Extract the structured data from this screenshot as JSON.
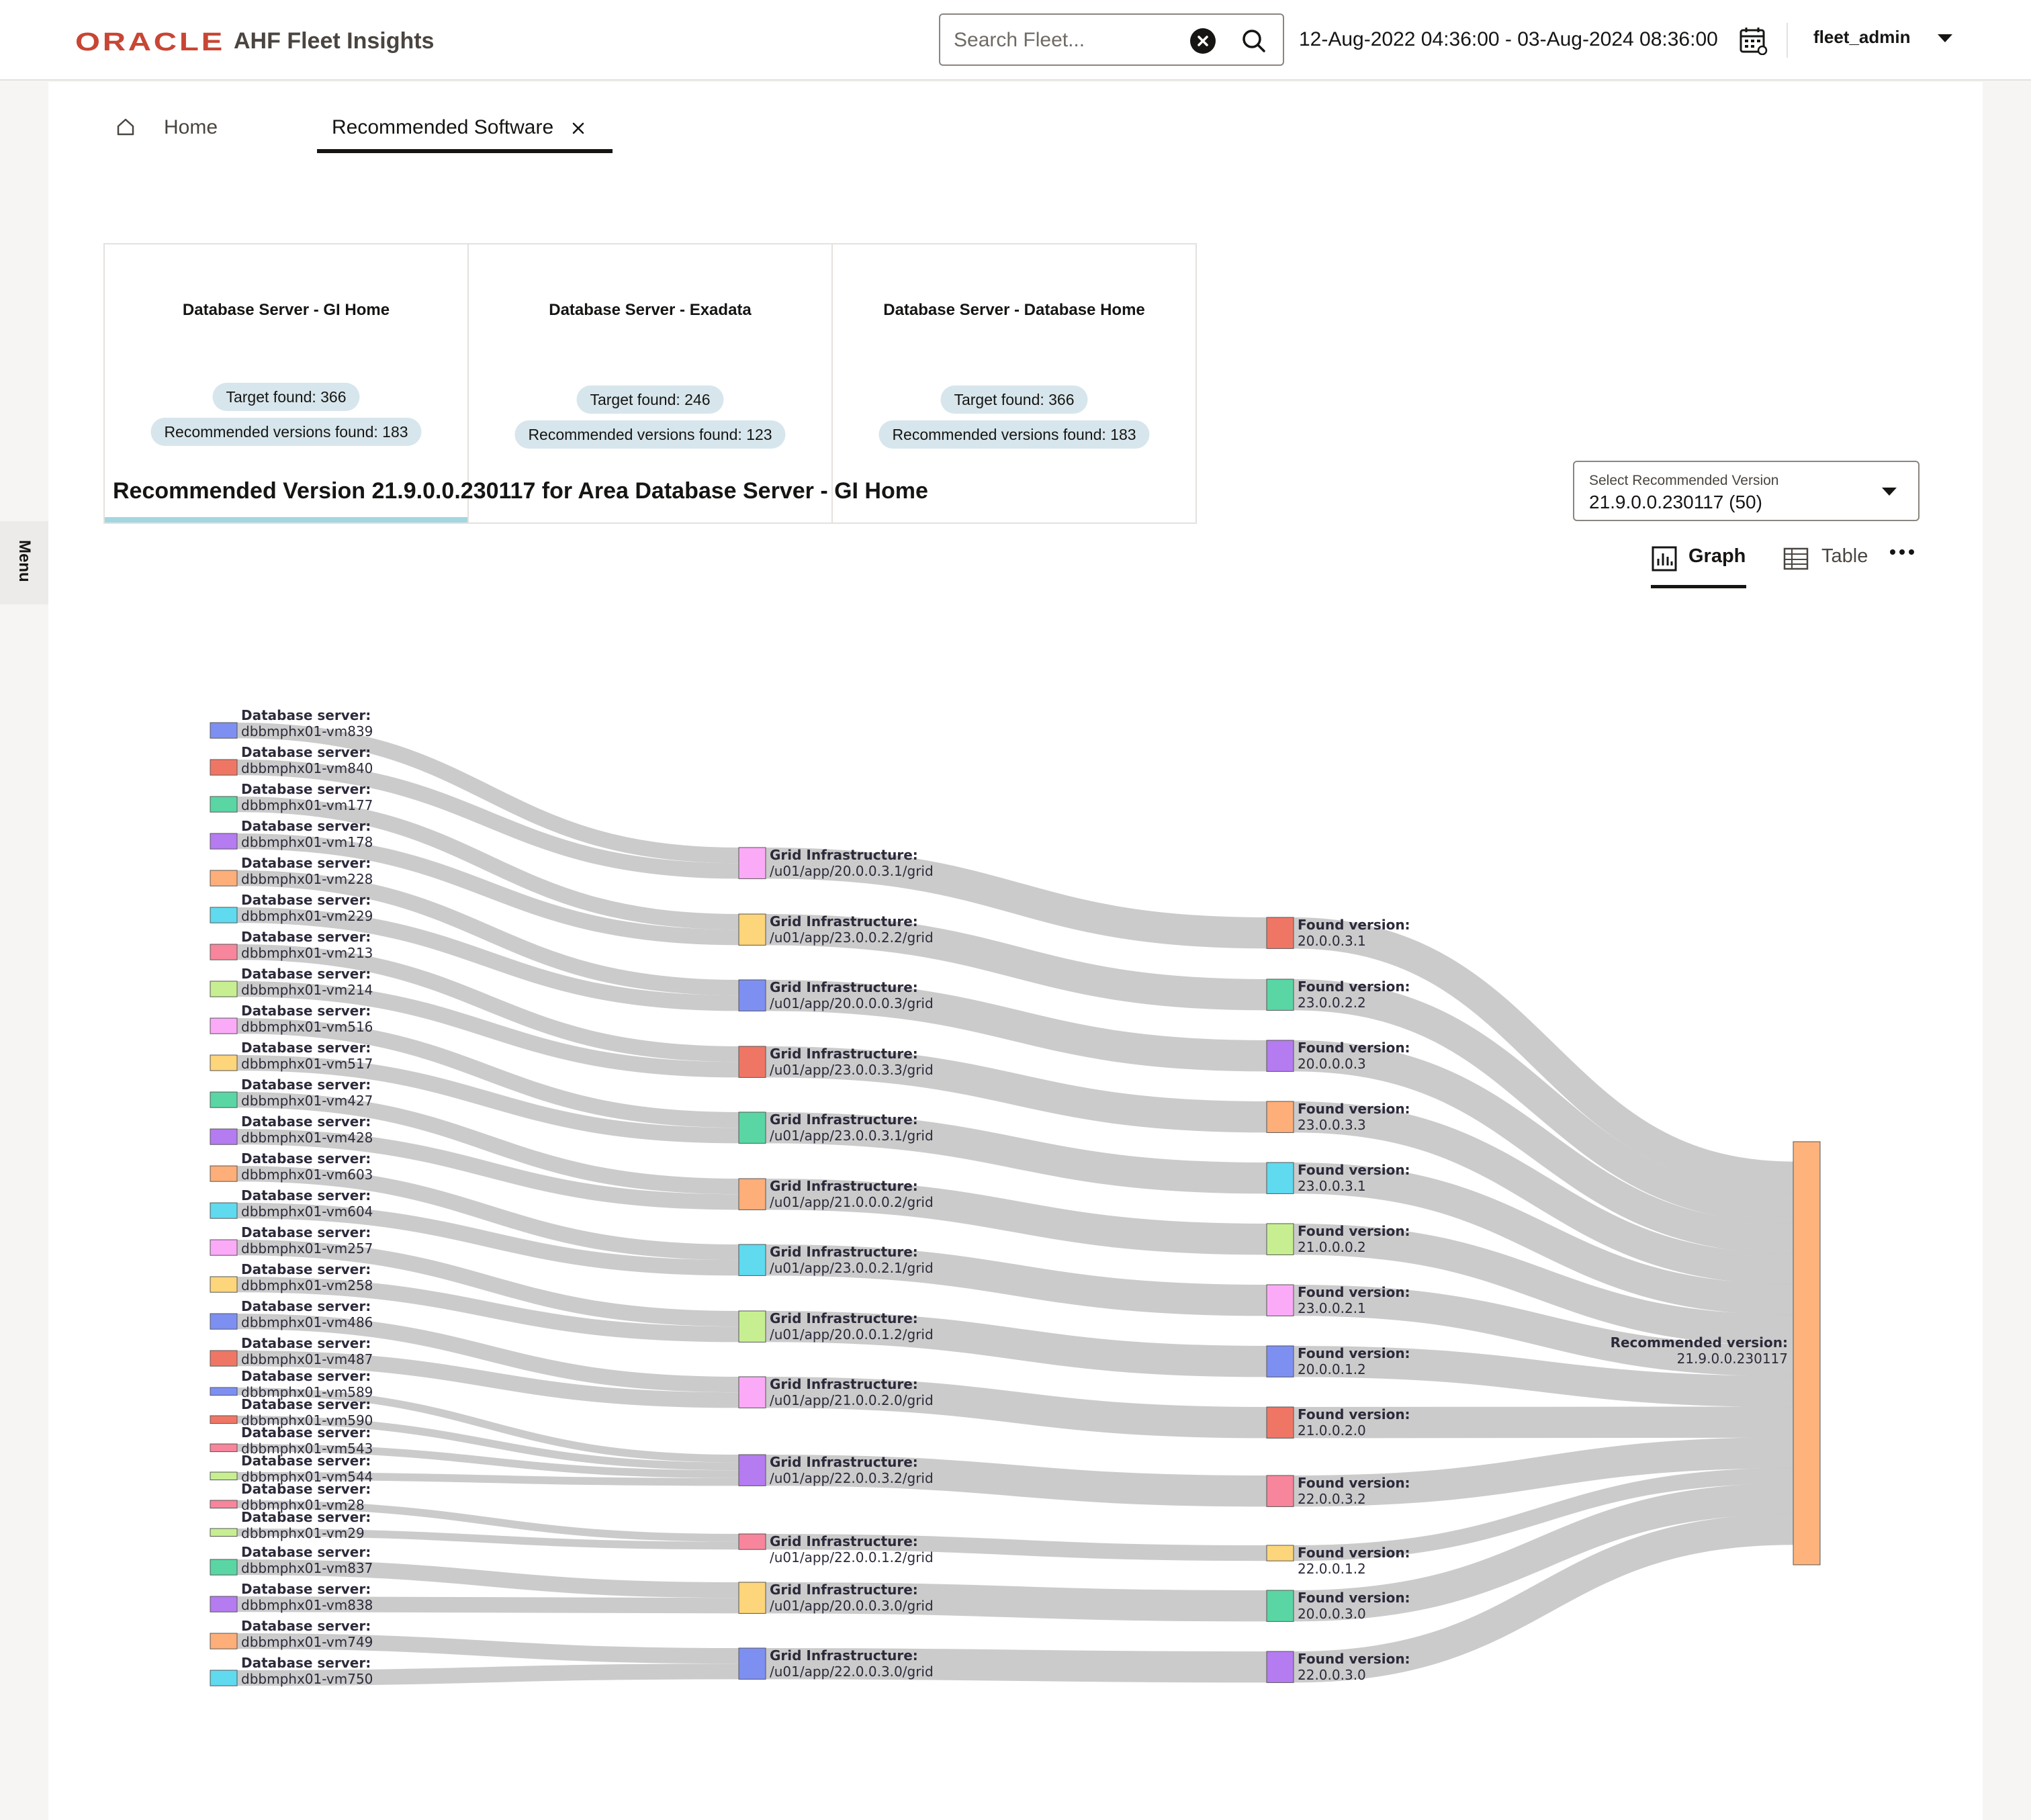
{
  "header": {
    "logo_text": "ORACLE",
    "app_title": "AHF Fleet Insights",
    "search_placeholder": "Search Fleet...",
    "date_range": "12-Aug-2022 04:36:00 - 03-Aug-2024 08:36:00",
    "user": "fleet_admin",
    "icons": {
      "clear": "clear-circle-icon",
      "search": "search-icon",
      "calendar": "calendar-icon",
      "user_menu": "chevron-down-icon"
    }
  },
  "side_menu": {
    "label": "Menu"
  },
  "tabs": [
    {
      "label": "Home",
      "icon": "home-icon"
    },
    {
      "label": "Recommended Software",
      "closable": true
    }
  ],
  "cards": [
    {
      "title": "Database Server - GI Home",
      "target": "Target found: 366",
      "versions": "Recommended versions found: 183",
      "selected": true
    },
    {
      "title": "Database Server - Exadata",
      "target": "Target found: 246",
      "versions": "Recommended versions found: 123",
      "selected": false
    },
    {
      "title": "Database Server - Database Home",
      "target": "Target found: 366",
      "versions": "Recommended versions found: 183",
      "selected": false
    }
  ],
  "section_title": "Recommended Version 21.9.0.0.230117 for Area Database Server - GI Home",
  "version_select": {
    "caption": "Select Recommended Version",
    "value": "21.9.0.0.230117 (50)"
  },
  "view_toggle": {
    "graph_label": "Graph",
    "table_label": "Table",
    "active": "Graph",
    "more_icon": "more-horizontal-icon"
  },
  "colors": {
    "brand": "#c74634",
    "link": "#c8c8c8",
    "selected_card": "#a2d7e1",
    "pill": "#d7e6ec"
  },
  "sankey": {
    "server_prefix": "Database server:",
    "gi_prefix": "Grid Infrastructure:",
    "found_prefix": "Found version:",
    "recommended_prefix": "Recommended version:",
    "recommended": "21.9.0.0.230117",
    "servers": [
      {
        "name": "dbbmphx01-vm839",
        "gi": 0,
        "color": "#7e8ff2",
        "weight": 2
      },
      {
        "name": "dbbmphx01-vm840",
        "gi": 0,
        "color": "#ef7665",
        "weight": 2
      },
      {
        "name": "dbbmphx01-vm177",
        "gi": 1,
        "color": "#59d6a4",
        "weight": 2
      },
      {
        "name": "dbbmphx01-vm178",
        "gi": 1,
        "color": "#b57bf1",
        "weight": 2
      },
      {
        "name": "dbbmphx01-vm228",
        "gi": 2,
        "color": "#fdae79",
        "weight": 2
      },
      {
        "name": "dbbmphx01-vm229",
        "gi": 2,
        "color": "#5fdaef",
        "weight": 2
      },
      {
        "name": "dbbmphx01-vm213",
        "gi": 3,
        "color": "#f7859c",
        "weight": 2
      },
      {
        "name": "dbbmphx01-vm214",
        "gi": 3,
        "color": "#c7ef91",
        "weight": 2
      },
      {
        "name": "dbbmphx01-vm516",
        "gi": 4,
        "color": "#fbaaf7",
        "weight": 2
      },
      {
        "name": "dbbmphx01-vm517",
        "gi": 4,
        "color": "#fdd57a",
        "weight": 2
      },
      {
        "name": "dbbmphx01-vm427",
        "gi": 5,
        "color": "#59d6a4",
        "weight": 2
      },
      {
        "name": "dbbmphx01-vm428",
        "gi": 5,
        "color": "#b57bf1",
        "weight": 2
      },
      {
        "name": "dbbmphx01-vm603",
        "gi": 6,
        "color": "#fdae79",
        "weight": 2
      },
      {
        "name": "dbbmphx01-vm604",
        "gi": 6,
        "color": "#5fdaef",
        "weight": 2
      },
      {
        "name": "dbbmphx01-vm257",
        "gi": 7,
        "color": "#fbaaf7",
        "weight": 2
      },
      {
        "name": "dbbmphx01-vm258",
        "gi": 7,
        "color": "#fdd57a",
        "weight": 2
      },
      {
        "name": "dbbmphx01-vm486",
        "gi": 8,
        "color": "#7e8ff2",
        "weight": 2
      },
      {
        "name": "dbbmphx01-vm487",
        "gi": 8,
        "color": "#ef7665",
        "weight": 2
      },
      {
        "name": "dbbmphx01-vm589",
        "gi": 9,
        "color": "#7e8ff2",
        "weight": 1
      },
      {
        "name": "dbbmphx01-vm590",
        "gi": 9,
        "color": "#ef7665",
        "weight": 1
      },
      {
        "name": "dbbmphx01-vm543",
        "gi": 9,
        "color": "#f7859c",
        "weight": 1
      },
      {
        "name": "dbbmphx01-vm544",
        "gi": 9,
        "color": "#c7ef91",
        "weight": 1
      },
      {
        "name": "dbbmphx01-vm28",
        "gi": 10,
        "color": "#f7859c",
        "weight": 1
      },
      {
        "name": "dbbmphx01-vm29",
        "gi": 10,
        "color": "#c7ef91",
        "weight": 1
      },
      {
        "name": "dbbmphx01-vm837",
        "gi": 11,
        "color": "#59d6a4",
        "weight": 2
      },
      {
        "name": "dbbmphx01-vm838",
        "gi": 11,
        "color": "#b57bf1",
        "weight": 2
      },
      {
        "name": "dbbmphx01-vm749",
        "gi": 12,
        "color": "#fdae79",
        "weight": 2
      },
      {
        "name": "dbbmphx01-vm750",
        "gi": 12,
        "color": "#5fdaef",
        "weight": 2
      }
    ],
    "gi_homes": [
      {
        "path": "/u01/app/20.0.0.3.1/grid",
        "found": 0,
        "color": "#fbaaf7"
      },
      {
        "path": "/u01/app/23.0.0.2.2/grid",
        "found": 1,
        "color": "#fdd57a"
      },
      {
        "path": "/u01/app/20.0.0.0.3/grid",
        "found": 2,
        "color": "#7e8ff2"
      },
      {
        "path": "/u01/app/23.0.0.3.3/grid",
        "found": 3,
        "color": "#ef7665"
      },
      {
        "path": "/u01/app/23.0.0.3.1/grid",
        "found": 4,
        "color": "#59d6a4"
      },
      {
        "path": "/u01/app/21.0.0.0.2/grid",
        "found": 5,
        "color": "#fdae79"
      },
      {
        "path": "/u01/app/23.0.0.2.1/grid",
        "found": 6,
        "color": "#5fdaef"
      },
      {
        "path": "/u01/app/20.0.0.1.2/grid",
        "found": 7,
        "color": "#c7ef91"
      },
      {
        "path": "/u01/app/21.0.0.2.0/grid",
        "found": 8,
        "color": "#fbaaf7"
      },
      {
        "path": "/u01/app/22.0.0.3.2/grid",
        "found": 9,
        "color": "#b57bf1"
      },
      {
        "path": "/u01/app/22.0.0.1.2/grid",
        "found": 10,
        "color": "#f7859c"
      },
      {
        "path": "/u01/app/20.0.0.3.0/grid",
        "found": 11,
        "color": "#fdd57a"
      },
      {
        "path": "/u01/app/22.0.0.3.0/grid",
        "found": 12,
        "color": "#7e8ff2"
      }
    ],
    "found_versions": [
      {
        "version": "20.0.0.3.1",
        "color": "#ef7665"
      },
      {
        "version": "23.0.0.2.2",
        "color": "#59d6a4"
      },
      {
        "version": "20.0.0.0.3",
        "color": "#b57bf1"
      },
      {
        "version": "23.0.0.3.3",
        "color": "#fdae79"
      },
      {
        "version": "23.0.0.3.1",
        "color": "#5fdaef"
      },
      {
        "version": "21.0.0.0.2",
        "color": "#c7ef91"
      },
      {
        "version": "23.0.0.2.1",
        "color": "#fbaaf7"
      },
      {
        "version": "20.0.0.1.2",
        "color": "#7e8ff2"
      },
      {
        "version": "21.0.0.2.0",
        "color": "#ef7665"
      },
      {
        "version": "22.0.0.3.2",
        "color": "#f7859c"
      },
      {
        "version": "22.0.0.1.2",
        "color": "#fdd57a"
      },
      {
        "version": "20.0.0.3.0",
        "color": "#59d6a4"
      },
      {
        "version": "22.0.0.3.0",
        "color": "#b57bf1"
      }
    ],
    "recommended_color": "#fdb37b"
  }
}
